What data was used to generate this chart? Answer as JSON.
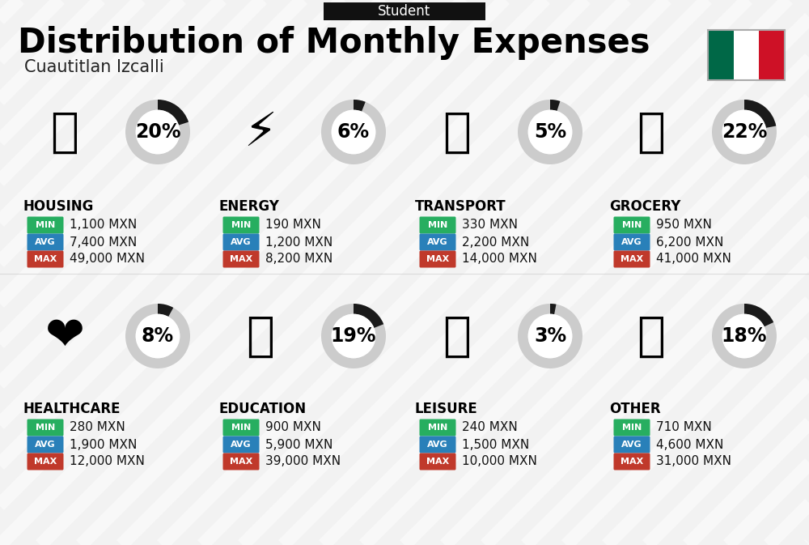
{
  "title": "Distribution of Monthly Expenses",
  "subtitle": "Cuautitlan Izcalli",
  "header_label": "Student",
  "background_color": "#f2f2f2",
  "categories": [
    {
      "name": "HOUSING",
      "pct": 20,
      "min": "1,100 MXN",
      "avg": "7,400 MXN",
      "max": "49,000 MXN",
      "emoji": "🏙",
      "row": 0,
      "col": 0
    },
    {
      "name": "ENERGY",
      "pct": 6,
      "min": "190 MXN",
      "avg": "1,200 MXN",
      "max": "8,200 MXN",
      "emoji": "⚡",
      "row": 0,
      "col": 1
    },
    {
      "name": "TRANSPORT",
      "pct": 5,
      "min": "330 MXN",
      "avg": "2,200 MXN",
      "max": "14,000 MXN",
      "emoji": "🚌",
      "row": 0,
      "col": 2
    },
    {
      "name": "GROCERY",
      "pct": 22,
      "min": "950 MXN",
      "avg": "6,200 MXN",
      "max": "41,000 MXN",
      "emoji": "🛒",
      "row": 0,
      "col": 3
    },
    {
      "name": "HEALTHCARE",
      "pct": 8,
      "min": "280 MXN",
      "avg": "1,900 MXN",
      "max": "12,000 MXN",
      "emoji": "❤️",
      "row": 1,
      "col": 0
    },
    {
      "name": "EDUCATION",
      "pct": 19,
      "min": "900 MXN",
      "avg": "5,900 MXN",
      "max": "39,000 MXN",
      "emoji": "🎓",
      "row": 1,
      "col": 1
    },
    {
      "name": "LEISURE",
      "pct": 3,
      "min": "240 MXN",
      "avg": "1,500 MXN",
      "max": "10,000 MXN",
      "emoji": "🛍️",
      "row": 1,
      "col": 2
    },
    {
      "name": "OTHER",
      "pct": 18,
      "min": "710 MXN",
      "avg": "4,600 MXN",
      "max": "31,000 MXN",
      "emoji": "💰",
      "row": 1,
      "col": 3
    }
  ],
  "min_color": "#27ae60",
  "avg_color": "#2980b9",
  "max_color": "#c0392b",
  "donut_filled_color": "#1a1a1a",
  "donut_empty_color": "#cccccc",
  "title_fontsize": 30,
  "subtitle_fontsize": 15,
  "header_fontsize": 12,
  "category_fontsize": 12,
  "pct_fontsize": 17,
  "value_fontsize": 11,
  "badge_fontsize": 8,
  "icon_fontsize": 42
}
